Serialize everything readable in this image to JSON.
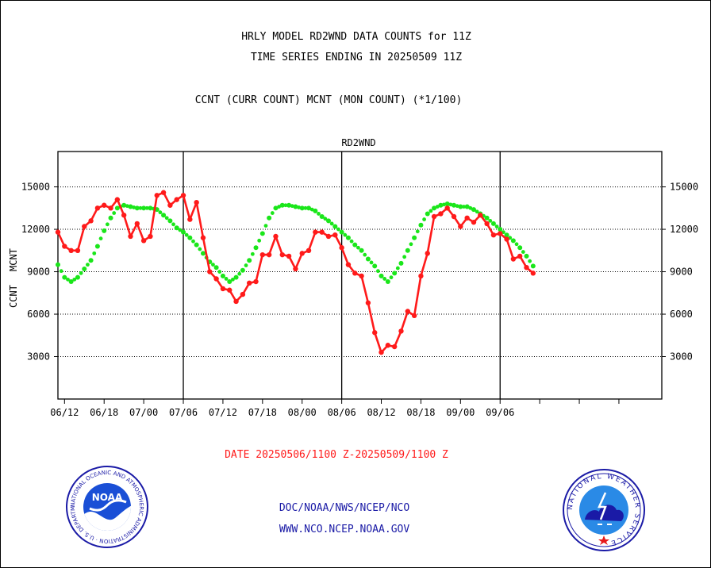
{
  "header": {
    "title_line1": "HRLY MODEL RD2WND DATA COUNTS for 11Z",
    "title_line2": "TIME SERIES ENDING IN 20250509 11Z",
    "subtitle": "CCNT (CURR COUNT) MCNT (MON COUNT) (*1/100)"
  },
  "footer": {
    "date_range": "DATE 20250506/1100 Z-20250509/1100 Z",
    "org_line": "DOC/NOAA/NWS/NCEP/NCO",
    "web_line": "WWW.NCO.NCEP.NOAA.GOV"
  },
  "logos": {
    "noaa": {
      "label": "NOAA",
      "ring_text": "NATIONAL OCEANIC AND ATMOSPHERIC ADMINISTRATION · U.S. DEPARTMENT OF COMMERCE"
    },
    "nws": {
      "ring_text": "NATIONAL WEATHER SERVICE"
    }
  },
  "colors": {
    "ccnt": "#ff1a1a",
    "mcnt": "#1ae61a",
    "panel_label": "#1a1aa6",
    "footer_text": "#1a1aa6",
    "date_text": "#ff1a1a"
  },
  "chart_data": {
    "type": "line",
    "panel_label": "RD2WND",
    "ylabel_left_ccnt": "CCNT",
    "ylabel_left_mcnt": "MCNT",
    "ylim": [
      0,
      17500
    ],
    "yticks": [
      3000,
      6000,
      9000,
      12000,
      15000
    ],
    "ytick_labels": [
      "3000",
      "6000",
      "9000",
      "12000",
      "15000"
    ],
    "xlim": [
      0,
      91.5
    ],
    "xticks": [
      1,
      7,
      13,
      19,
      25,
      31,
      37,
      43,
      49,
      55,
      61,
      67,
      73,
      79,
      85
    ],
    "xtick_labels": [
      "06/12",
      "06/18",
      "07/00",
      "07/06",
      "07/12",
      "07/18",
      "08/00",
      "08/06",
      "08/12",
      "08/18",
      "09/00",
      "09/06"
    ],
    "xtick_label_positions": [
      1,
      7,
      13,
      19,
      25,
      31,
      37,
      43,
      49,
      55,
      61,
      67
    ],
    "day_boundaries": [
      19,
      43,
      67
    ],
    "grid": "horizontal dotted at y ticks",
    "series": [
      {
        "name": "CCNT",
        "style": "solid line with dots",
        "x": [
          0,
          1,
          2,
          3,
          4,
          5,
          6,
          7,
          8,
          9,
          10,
          11,
          12,
          13,
          14,
          15,
          16,
          17,
          18,
          19,
          20,
          21,
          22,
          23,
          24,
          25,
          26,
          27,
          28,
          29,
          30,
          31,
          32,
          33,
          34,
          35,
          36,
          37,
          38,
          39,
          40,
          41,
          42,
          43,
          44,
          45,
          46,
          47,
          48,
          49,
          50,
          51,
          52,
          53,
          54,
          55,
          56,
          57,
          58,
          59,
          60,
          61,
          62,
          63,
          64,
          65,
          66,
          67,
          68,
          69,
          70,
          71,
          72
        ],
        "values": [
          11800,
          10800,
          10500,
          10500,
          12200,
          12600,
          13500,
          13700,
          13500,
          14100,
          13000,
          11500,
          12400,
          11200,
          11500,
          14400,
          14600,
          13700,
          14100,
          14400,
          12700,
          13900,
          11400,
          9000,
          8500,
          7800,
          7700,
          6900,
          7400,
          8200,
          8300,
          10200,
          10200,
          11500,
          10200,
          10100,
          9200,
          10300,
          10500,
          11800,
          11800,
          11500,
          11600,
          10700,
          9500,
          8900,
          8700,
          6800,
          4700,
          3300,
          3800,
          3700,
          4800,
          6200,
          5900,
          8700,
          10300,
          12900,
          13100,
          13500,
          12900,
          12200,
          12800,
          12500,
          13000,
          12400,
          11600,
          11700,
          11300,
          9900,
          10100,
          9300,
          8900
        ]
      },
      {
        "name": "MCNT",
        "style": "dotted line",
        "x": [
          0,
          1,
          2,
          3,
          4,
          5,
          6,
          7,
          8,
          9,
          10,
          11,
          12,
          13,
          14,
          15,
          16,
          17,
          18,
          19,
          20,
          21,
          22,
          23,
          24,
          25,
          26,
          27,
          28,
          29,
          30,
          31,
          32,
          33,
          34,
          35,
          36,
          37,
          38,
          39,
          40,
          41,
          42,
          43,
          44,
          45,
          46,
          47,
          48,
          49,
          50,
          51,
          52,
          53,
          54,
          55,
          56,
          57,
          58,
          59,
          60,
          61,
          62,
          63,
          64,
          65,
          66,
          67,
          68,
          69,
          70,
          71,
          72
        ],
        "values": [
          9500,
          8600,
          8300,
          8600,
          9200,
          9800,
          10800,
          11900,
          12800,
          13500,
          13700,
          13600,
          13500,
          13500,
          13500,
          13400,
          13000,
          12600,
          12100,
          11800,
          11400,
          10900,
          10300,
          9700,
          9300,
          8700,
          8300,
          8600,
          9100,
          9800,
          10700,
          11700,
          12800,
          13500,
          13700,
          13700,
          13600,
          13500,
          13500,
          13300,
          12900,
          12600,
          12200,
          11800,
          11400,
          10900,
          10500,
          9900,
          9400,
          8700,
          8300,
          8900,
          9600,
          10500,
          11400,
          12300,
          13100,
          13500,
          13700,
          13800,
          13700,
          13600,
          13600,
          13400,
          13100,
          12800,
          12400,
          12000,
          11600,
          11200,
          10700,
          10100,
          9400
        ]
      }
    ]
  }
}
